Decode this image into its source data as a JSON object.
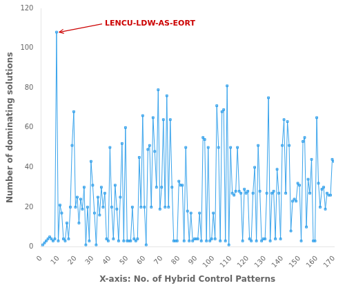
{
  "chart_data": {
    "type": "line",
    "xlabel": "X-axis: No. of Hybrid Control Patterns",
    "ylabel": "Number of dominating solutions",
    "x": [
      1,
      2,
      3,
      4,
      5,
      6,
      7,
      8,
      9,
      10,
      11,
      12,
      13,
      14,
      15,
      16,
      17,
      18,
      19,
      20,
      21,
      22,
      23,
      24,
      25,
      26,
      27,
      28,
      29,
      30,
      31,
      32,
      33,
      34,
      35,
      36,
      37,
      38,
      39,
      40,
      41,
      42,
      43,
      44,
      45,
      46,
      47,
      48,
      49,
      50,
      51,
      52,
      53,
      54,
      55,
      56,
      57,
      58,
      59,
      60,
      61,
      62,
      63,
      64,
      65,
      66,
      67,
      68,
      69,
      70,
      71,
      72,
      73,
      74,
      75,
      76,
      77,
      78,
      79,
      80,
      81,
      82,
      83,
      84,
      85,
      86,
      87,
      88,
      89,
      90,
      91,
      92,
      93,
      94,
      95,
      96,
      97,
      98,
      99,
      100,
      101,
      102,
      103,
      104,
      105,
      106,
      107,
      108,
      109,
      110,
      111,
      112,
      113,
      114,
      115,
      116,
      117,
      118,
      119,
      120,
      121,
      122,
      123,
      124,
      125,
      126,
      127,
      128,
      129,
      130,
      131,
      132,
      133,
      134,
      135,
      136,
      137,
      138,
      139,
      140,
      141,
      142,
      143,
      144,
      145,
      146,
      147,
      148,
      149,
      150,
      151,
      152,
      153,
      154,
      155,
      156,
      157,
      158,
      159,
      160,
      161,
      162,
      163,
      164,
      165,
      166,
      167,
      168,
      169,
      170
    ],
    "values": [
      1,
      2,
      3,
      4,
      5,
      4,
      3,
      4,
      108,
      3,
      21,
      17,
      4,
      3,
      12,
      4,
      20,
      51,
      68,
      20,
      25,
      12,
      24,
      19,
      30,
      1,
      20,
      3,
      43,
      31,
      17,
      1,
      25,
      16,
      30,
      20,
      27,
      4,
      3,
      50,
      20,
      4,
      31,
      19,
      3,
      25,
      52,
      3,
      60,
      3,
      3,
      3,
      20,
      4,
      3,
      4,
      45,
      20,
      66,
      20,
      1,
      49,
      51,
      20,
      65,
      48,
      30,
      79,
      19,
      30,
      64,
      20,
      76,
      20,
      64,
      30,
      3,
      3,
      3,
      33,
      31,
      31,
      3,
      50,
      18,
      3,
      17,
      3,
      4,
      4,
      4,
      17,
      3,
      55,
      54,
      3,
      50,
      3,
      4,
      17,
      4,
      71,
      50,
      3,
      68,
      69,
      3,
      81,
      1,
      50,
      27,
      26,
      28,
      50,
      28,
      27,
      3,
      29,
      27,
      28,
      4,
      3,
      27,
      40,
      3,
      51,
      28,
      3,
      4,
      4,
      27,
      75,
      3,
      27,
      28,
      4,
      39,
      27,
      4,
      51,
      64,
      27,
      63,
      51,
      8,
      23,
      24,
      23,
      32,
      31,
      3,
      53,
      55,
      10,
      34,
      27,
      44,
      3,
      3,
      65,
      32,
      20,
      29,
      30,
      19,
      27,
      26,
      26,
      44,
      43
    ],
    "marker": "square",
    "xlim": [
      0,
      170
    ],
    "ylim": [
      0,
      120
    ],
    "xticks": [
      0,
      10,
      20,
      30,
      40,
      50,
      60,
      70,
      80,
      90,
      100,
      110,
      120,
      130,
      140,
      150,
      160,
      170
    ],
    "yticks": [
      0,
      20,
      40,
      60,
      80,
      100,
      120
    ],
    "grid": false,
    "annotations": [
      {
        "text": "LENCU-LDW-AS-EORT",
        "x": 9,
        "y": 108,
        "color": "#cc0000"
      }
    ]
  }
}
